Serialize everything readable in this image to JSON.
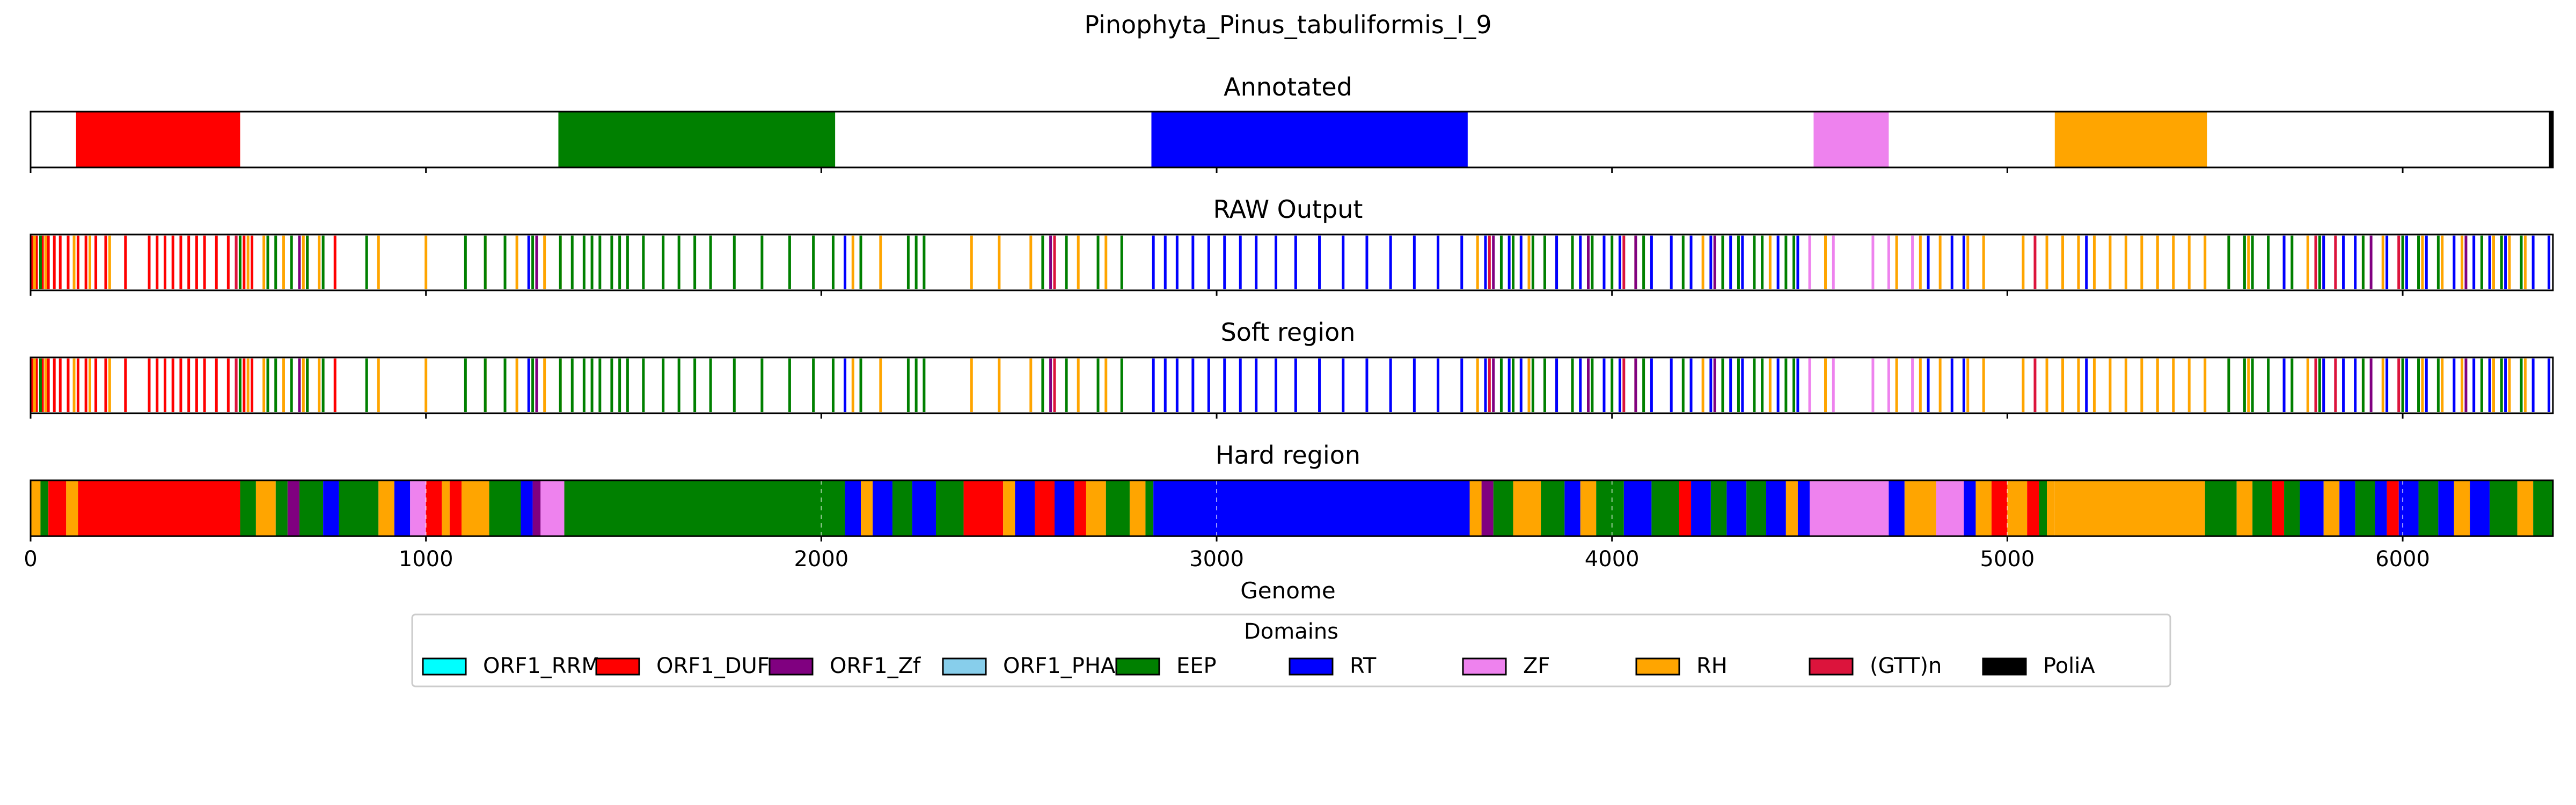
{
  "chart_data": {
    "type": "genome_track",
    "title": "Pinophyta_Pinus_tabuliformis_I_9",
    "xlabel": "Genome",
    "xlim": [
      0,
      6380
    ],
    "xticks": [
      0,
      1000,
      2000,
      3000,
      4000,
      5000,
      6000
    ],
    "domain_colors": {
      "ORF1_RRM": "#00ffff",
      "ORF1_DUF": "#ff0000",
      "ORF1_Zf": "#800080",
      "ORF1_PHA": "#87ceeb",
      "EEP": "#008000",
      "RT": "#0000ff",
      "ZF": "#ee82ee",
      "RH": "#ffa500",
      "(GTT)n": "#dc143c",
      "PoliA": "#000000"
    },
    "legend": {
      "title": "Domains",
      "placement": "bottom-center",
      "entries": [
        "ORF1_RRM",
        "ORF1_DUF",
        "ORF1_Zf",
        "ORF1_PHA",
        "EEP",
        "RT",
        "ZF",
        "RH",
        "(GTT)n",
        "PoliA"
      ]
    },
    "panels": [
      {
        "title": "Annotated",
        "kind": "segments",
        "segments": [
          {
            "domain": "ORF1_DUF",
            "start": 115,
            "end": 530
          },
          {
            "domain": "EEP",
            "start": 1335,
            "end": 2035
          },
          {
            "domain": "RT",
            "start": 2835,
            "end": 3635
          },
          {
            "domain": "ZF",
            "start": 4510,
            "end": 4700
          },
          {
            "domain": "RH",
            "start": 5120,
            "end": 5505
          },
          {
            "domain": "PoliA",
            "start": 6370,
            "end": 6380
          }
        ]
      },
      {
        "title": "RAW Output",
        "kind": "ticks",
        "ticks": [
          {
            "domain": "ORF1_DUF",
            "positions": [
              5,
              15,
              30,
              45,
              60,
              75,
              95,
              120,
              140,
              165,
              190,
              240,
              300,
              320,
              340,
              360,
              380,
              400,
              420,
              440,
              470,
              500,
              520,
              540,
              560,
              700,
              770
            ]
          },
          {
            "domain": "RH",
            "positions": [
              10,
              38,
              110,
              150,
              200,
              550,
              590,
              640,
              690,
              730,
              880,
              1000,
              1150,
              1230,
              1300,
              1340,
              2080,
              2150,
              2380,
              2450,
              2530,
              2650,
              2720,
              3660,
              3790,
              3860,
              4060,
              4230,
              4400,
              4540,
              4720,
              4780,
              4830,
              4900,
              4940,
              5040,
              5100,
              5140,
              5180,
              5220,
              5260,
              5300,
              5340,
              5380,
              5420,
              5460,
              5500,
              5560,
              5610,
              5700,
              5760,
              5800,
              5900,
              5950,
              6050,
              6100,
              6150,
              6230,
              6270,
              6310
            ]
          },
          {
            "domain": "EEP",
            "positions": [
              25,
              530,
              600,
              620,
              660,
              700,
              740,
              850,
              1100,
              1150,
              1200,
              1270,
              1340,
              1370,
              1400,
              1420,
              1440,
              1470,
              1490,
              1510,
              1550,
              1600,
              1640,
              1680,
              1720,
              1780,
              1850,
              1920,
              1980,
              2030,
              2100,
              2220,
              2240,
              2260,
              2560,
              2620,
              2700,
              2760,
              3720,
              3750,
              3800,
              3830,
              3900,
              3950,
              4000,
              4080,
              4180,
              4280,
              4320,
              4360,
              4380,
              4440,
              4460,
              5560,
              5600,
              5620,
              5660,
              5720,
              5790,
              5900,
              6000,
              6040,
              6090,
              6200,
              6250,
              6300
            ]
          },
          {
            "domain": "RT",
            "positions": [
              1260,
              2060,
              2840,
              2870,
              2900,
              2940,
              2980,
              3020,
              3060,
              3100,
              3150,
              3200,
              3260,
              3320,
              3380,
              3440,
              3500,
              3560,
              3620,
              3680,
              3740,
              3770,
              3860,
              3920,
              3980,
              4020,
              4100,
              4150,
              4200,
              4250,
              4300,
              4330,
              4420,
              4470,
              4800,
              4860,
              4890,
              5200,
              5700,
              5800,
              5850,
              5880,
              5960,
              6010,
              6060,
              6130,
              6180,
              6220,
              6260,
              6330,
              6370
            ]
          },
          {
            "domain": "ORF1_Zf",
            "positions": [
              680,
              1280,
              2580,
              3700,
              3940,
              4060,
              4260,
              5920,
              6160
            ]
          },
          {
            "domain": "ZF",
            "positions": [
              4500,
              4560,
              4660,
              4700,
              4760
            ]
          },
          {
            "domain": "(GTT)n",
            "positions": [
              520,
              2590,
              3690,
              4030,
              5070,
              5780,
              5830,
              5990
            ]
          }
        ]
      },
      {
        "title": "Soft region",
        "kind": "ticks",
        "same_as": "RAW Output"
      },
      {
        "title": "Hard region",
        "kind": "segments",
        "gridlines": [
          1000,
          2000,
          3000,
          4000,
          5000,
          6000
        ],
        "segments": [
          {
            "domain": "RH",
            "start": 0,
            "end": 25
          },
          {
            "domain": "EEP",
            "start": 25,
            "end": 45
          },
          {
            "domain": "ORF1_DUF",
            "start": 45,
            "end": 90
          },
          {
            "domain": "RH",
            "start": 90,
            "end": 120
          },
          {
            "domain": "ORF1_DUF",
            "start": 120,
            "end": 530
          },
          {
            "domain": "EEP",
            "start": 530,
            "end": 570
          },
          {
            "domain": "RH",
            "start": 570,
            "end": 620
          },
          {
            "domain": "EEP",
            "start": 620,
            "end": 650
          },
          {
            "domain": "ORF1_Zf",
            "start": 650,
            "end": 680
          },
          {
            "domain": "EEP",
            "start": 680,
            "end": 740
          },
          {
            "domain": "RT",
            "start": 740,
            "end": 780
          },
          {
            "domain": "EEP",
            "start": 780,
            "end": 880
          },
          {
            "domain": "RH",
            "start": 880,
            "end": 920
          },
          {
            "domain": "RT",
            "start": 920,
            "end": 960
          },
          {
            "domain": "ZF",
            "start": 960,
            "end": 1000
          },
          {
            "domain": "ORF1_DUF",
            "start": 1000,
            "end": 1040
          },
          {
            "domain": "RH",
            "start": 1040,
            "end": 1060
          },
          {
            "domain": "ORF1_DUF",
            "start": 1060,
            "end": 1090
          },
          {
            "domain": "RH",
            "start": 1090,
            "end": 1160
          },
          {
            "domain": "EEP",
            "start": 1160,
            "end": 1240
          },
          {
            "domain": "RT",
            "start": 1240,
            "end": 1270
          },
          {
            "domain": "ORF1_Zf",
            "start": 1270,
            "end": 1290
          },
          {
            "domain": "ZF",
            "start": 1290,
            "end": 1350
          },
          {
            "domain": "EEP",
            "start": 1350,
            "end": 2060
          },
          {
            "domain": "RT",
            "start": 2060,
            "end": 2100
          },
          {
            "domain": "RH",
            "start": 2100,
            "end": 2130
          },
          {
            "domain": "RT",
            "start": 2130,
            "end": 2180
          },
          {
            "domain": "EEP",
            "start": 2180,
            "end": 2230
          },
          {
            "domain": "RT",
            "start": 2230,
            "end": 2290
          },
          {
            "domain": "EEP",
            "start": 2290,
            "end": 2360
          },
          {
            "domain": "ORF1_DUF",
            "start": 2360,
            "end": 2460
          },
          {
            "domain": "RH",
            "start": 2460,
            "end": 2490
          },
          {
            "domain": "RT",
            "start": 2490,
            "end": 2540
          },
          {
            "domain": "ORF1_DUF",
            "start": 2540,
            "end": 2590
          },
          {
            "domain": "RT",
            "start": 2590,
            "end": 2640
          },
          {
            "domain": "ORF1_DUF",
            "start": 2640,
            "end": 2670
          },
          {
            "domain": "RH",
            "start": 2670,
            "end": 2720
          },
          {
            "domain": "EEP",
            "start": 2720,
            "end": 2780
          },
          {
            "domain": "RH",
            "start": 2780,
            "end": 2820
          },
          {
            "domain": "EEP",
            "start": 2820,
            "end": 2840
          },
          {
            "domain": "RT",
            "start": 2840,
            "end": 3640
          },
          {
            "domain": "RH",
            "start": 3640,
            "end": 3670
          },
          {
            "domain": "ORF1_Zf",
            "start": 3670,
            "end": 3700
          },
          {
            "domain": "EEP",
            "start": 3700,
            "end": 3750
          },
          {
            "domain": "RH",
            "start": 3750,
            "end": 3820
          },
          {
            "domain": "EEP",
            "start": 3820,
            "end": 3880
          },
          {
            "domain": "RT",
            "start": 3880,
            "end": 3920
          },
          {
            "domain": "RH",
            "start": 3920,
            "end": 3960
          },
          {
            "domain": "EEP",
            "start": 3960,
            "end": 4030
          },
          {
            "domain": "RT",
            "start": 4030,
            "end": 4100
          },
          {
            "domain": "EEP",
            "start": 4100,
            "end": 4170
          },
          {
            "domain": "ORF1_DUF",
            "start": 4170,
            "end": 4200
          },
          {
            "domain": "RT",
            "start": 4200,
            "end": 4250
          },
          {
            "domain": "EEP",
            "start": 4250,
            "end": 4290
          },
          {
            "domain": "RT",
            "start": 4290,
            "end": 4340
          },
          {
            "domain": "EEP",
            "start": 4340,
            "end": 4390
          },
          {
            "domain": "RT",
            "start": 4390,
            "end": 4440
          },
          {
            "domain": "RH",
            "start": 4440,
            "end": 4470
          },
          {
            "domain": "RT",
            "start": 4470,
            "end": 4500
          },
          {
            "domain": "ZF",
            "start": 4500,
            "end": 4700
          },
          {
            "domain": "RT",
            "start": 4700,
            "end": 4740
          },
          {
            "domain": "RH",
            "start": 4740,
            "end": 4820
          },
          {
            "domain": "ZF",
            "start": 4820,
            "end": 4890
          },
          {
            "domain": "RT",
            "start": 4890,
            "end": 4920
          },
          {
            "domain": "RH",
            "start": 4920,
            "end": 4960
          },
          {
            "domain": "ORF1_DUF",
            "start": 4960,
            "end": 5000
          },
          {
            "domain": "RH",
            "start": 5000,
            "end": 5050
          },
          {
            "domain": "ORF1_DUF",
            "start": 5050,
            "end": 5080
          },
          {
            "domain": "EEP",
            "start": 5080,
            "end": 5100
          },
          {
            "domain": "RH",
            "start": 5100,
            "end": 5120
          },
          {
            "domain": "RH",
            "start": 5120,
            "end": 5500
          },
          {
            "domain": "EEP",
            "start": 5500,
            "end": 5580
          },
          {
            "domain": "RH",
            "start": 5580,
            "end": 5620
          },
          {
            "domain": "EEP",
            "start": 5620,
            "end": 5670
          },
          {
            "domain": "ORF1_DUF",
            "start": 5670,
            "end": 5700
          },
          {
            "domain": "EEP",
            "start": 5700,
            "end": 5740
          },
          {
            "domain": "RT",
            "start": 5740,
            "end": 5800
          },
          {
            "domain": "RH",
            "start": 5800,
            "end": 5840
          },
          {
            "domain": "RT",
            "start": 5840,
            "end": 5880
          },
          {
            "domain": "EEP",
            "start": 5880,
            "end": 5930
          },
          {
            "domain": "RT",
            "start": 5930,
            "end": 5960
          },
          {
            "domain": "ORF1_DUF",
            "start": 5960,
            "end": 5990
          },
          {
            "domain": "RT",
            "start": 5990,
            "end": 6040
          },
          {
            "domain": "EEP",
            "start": 6040,
            "end": 6090
          },
          {
            "domain": "RT",
            "start": 6090,
            "end": 6130
          },
          {
            "domain": "RH",
            "start": 6130,
            "end": 6170
          },
          {
            "domain": "RT",
            "start": 6170,
            "end": 6220
          },
          {
            "domain": "EEP",
            "start": 6220,
            "end": 6290
          },
          {
            "domain": "RH",
            "start": 6290,
            "end": 6330
          },
          {
            "domain": "EEP",
            "start": 6330,
            "end": 6380
          }
        ]
      }
    ]
  }
}
